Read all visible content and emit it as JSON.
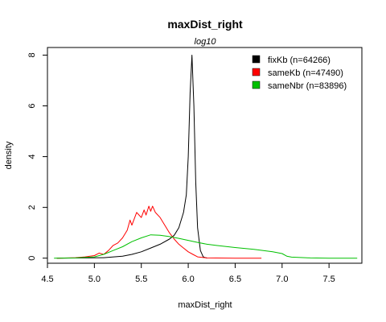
{
  "chart_data": {
    "type": "line",
    "title": "maxDist_right",
    "subtitle": "log10",
    "xlabel": "maxDist_right",
    "ylabel": "density",
    "xlim": [
      4.5,
      7.85
    ],
    "ylim": [
      -0.2,
      8.3
    ],
    "x_ticks": [
      4.5,
      5.0,
      5.5,
      6.0,
      6.5,
      7.0,
      7.5
    ],
    "x_tick_labels": [
      "4.5",
      "5.0",
      "5.5",
      "6.0",
      "6.5",
      "7.0",
      "7.5"
    ],
    "y_ticks": [
      0,
      2,
      4,
      6,
      8
    ],
    "y_tick_labels": [
      "0",
      "2",
      "4",
      "6",
      "8"
    ],
    "legend_position": "top-right",
    "series": [
      {
        "name": "fixKb (n=64266)",
        "color": "#000000",
        "points": [
          [
            4.6,
            0
          ],
          [
            4.9,
            0.01
          ],
          [
            5.1,
            0.02
          ],
          [
            5.3,
            0.08
          ],
          [
            5.4,
            0.15
          ],
          [
            5.5,
            0.25
          ],
          [
            5.6,
            0.4
          ],
          [
            5.7,
            0.55
          ],
          [
            5.8,
            0.75
          ],
          [
            5.85,
            0.9
          ],
          [
            5.9,
            1.2
          ],
          [
            5.95,
            1.8
          ],
          [
            5.98,
            2.5
          ],
          [
            6.0,
            4.0
          ],
          [
            6.02,
            6.5
          ],
          [
            6.04,
            8.0
          ],
          [
            6.06,
            6.0
          ],
          [
            6.08,
            3.0
          ],
          [
            6.1,
            1.2
          ],
          [
            6.13,
            0.3
          ],
          [
            6.16,
            0.05
          ],
          [
            6.2,
            0
          ]
        ]
      },
      {
        "name": "sameKb (n=47490)",
        "color": "#ff0000",
        "points": [
          [
            4.6,
            0
          ],
          [
            4.8,
            0.02
          ],
          [
            4.9,
            0.05
          ],
          [
            5.0,
            0.1
          ],
          [
            5.05,
            0.2
          ],
          [
            5.1,
            0.15
          ],
          [
            5.15,
            0.3
          ],
          [
            5.2,
            0.5
          ],
          [
            5.25,
            0.6
          ],
          [
            5.3,
            0.8
          ],
          [
            5.35,
            1.1
          ],
          [
            5.38,
            1.5
          ],
          [
            5.4,
            1.3
          ],
          [
            5.45,
            1.8
          ],
          [
            5.5,
            1.6
          ],
          [
            5.53,
            1.9
          ],
          [
            5.55,
            1.7
          ],
          [
            5.58,
            2.05
          ],
          [
            5.6,
            1.85
          ],
          [
            5.62,
            2.05
          ],
          [
            5.65,
            1.8
          ],
          [
            5.7,
            1.6
          ],
          [
            5.75,
            1.3
          ],
          [
            5.8,
            1.0
          ],
          [
            5.85,
            0.75
          ],
          [
            5.9,
            0.55
          ],
          [
            5.95,
            0.4
          ],
          [
            6.0,
            0.25
          ],
          [
            6.05,
            0.15
          ],
          [
            6.1,
            0.05
          ],
          [
            6.2,
            0.01
          ],
          [
            6.5,
            0.0
          ],
          [
            6.78,
            0.0
          ]
        ]
      },
      {
        "name": "sameNbr (n=83896)",
        "color": "#00c000",
        "points": [
          [
            4.57,
            0
          ],
          [
            4.8,
            0.01
          ],
          [
            5.0,
            0.05
          ],
          [
            5.1,
            0.15
          ],
          [
            5.2,
            0.3
          ],
          [
            5.3,
            0.45
          ],
          [
            5.4,
            0.65
          ],
          [
            5.5,
            0.8
          ],
          [
            5.6,
            0.92
          ],
          [
            5.7,
            0.9
          ],
          [
            5.8,
            0.85
          ],
          [
            5.9,
            0.78
          ],
          [
            6.0,
            0.7
          ],
          [
            6.1,
            0.62
          ],
          [
            6.2,
            0.55
          ],
          [
            6.3,
            0.5
          ],
          [
            6.5,
            0.42
          ],
          [
            6.7,
            0.35
          ],
          [
            6.9,
            0.25
          ],
          [
            7.0,
            0.18
          ],
          [
            7.05,
            0.08
          ],
          [
            7.1,
            0.04
          ],
          [
            7.3,
            0.01
          ],
          [
            7.5,
            0.0
          ],
          [
            7.8,
            0.0
          ]
        ]
      }
    ]
  }
}
